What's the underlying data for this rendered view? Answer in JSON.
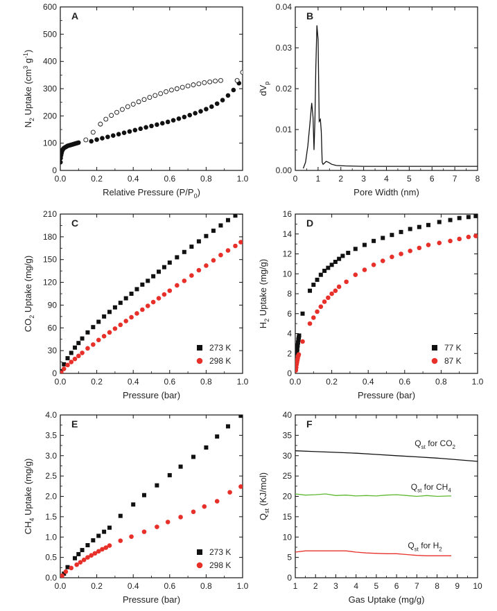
{
  "figure": {
    "background": "#ffffff",
    "ink": "#111111",
    "red": "#e8302a",
    "green": "#5cb82e"
  },
  "chart_data": [
    {
      "id": "A",
      "type": "scatter",
      "panel_label": "A",
      "xlabel": "Relative Pressure (P/P",
      "xlabel_sub": "0",
      "xlabel_tail": ")",
      "ylabel": "N",
      "ylabel_sub": "2",
      "ylabel_mid": " Uptake (cm",
      "ylabel_sup1": "3",
      "ylabel_mid2": " g",
      "ylabel_sup2": "-1",
      "ylabel_tail": ")",
      "xlim": [
        0,
        1
      ],
      "ylim": [
        0,
        600
      ],
      "grid": false,
      "xticks": [
        0.0,
        0.2,
        0.4,
        0.6,
        0.8,
        1.0
      ],
      "xtick_labels": [
        "0.0",
        "0.2",
        "0.4",
        "0.6",
        "0.8",
        "1.0"
      ],
      "yticks": [
        0,
        100,
        200,
        300,
        400,
        500,
        600
      ],
      "ytick_labels": [
        "0",
        "100",
        "200",
        "300",
        "400",
        "500",
        "600"
      ],
      "series": [
        {
          "role": "adsorption",
          "marker": "filled-circle",
          "color": "#111111",
          "x": [
            0.001,
            0.002,
            0.004,
            0.006,
            0.008,
            0.01,
            0.013,
            0.016,
            0.02,
            0.025,
            0.03,
            0.035,
            0.04,
            0.045,
            0.05,
            0.055,
            0.06,
            0.065,
            0.07,
            0.075,
            0.08,
            0.085,
            0.09,
            0.095,
            0.1,
            0.17,
            0.2,
            0.23,
            0.26,
            0.29,
            0.32,
            0.35,
            0.38,
            0.41,
            0.44,
            0.47,
            0.5,
            0.53,
            0.56,
            0.59,
            0.62,
            0.65,
            0.68,
            0.71,
            0.74,
            0.77,
            0.8,
            0.83,
            0.86,
            0.89,
            0.92,
            0.95,
            0.98
          ],
          "y": [
            30,
            45,
            55,
            62,
            68,
            72,
            76,
            79,
            82,
            84,
            86,
            88,
            90,
            91,
            92,
            93,
            94,
            95,
            96,
            97,
            98,
            99,
            100,
            101,
            102,
            107,
            113,
            118,
            123,
            128,
            133,
            138,
            143,
            148,
            153,
            158,
            163,
            168,
            173,
            178,
            184,
            190,
            196,
            203,
            210,
            217,
            225,
            234,
            245,
            258,
            275,
            295,
            320
          ]
        },
        {
          "role": "desorption",
          "marker": "open-circle",
          "color": "#111111",
          "x": [
            1.0,
            0.97,
            0.88,
            0.85,
            0.82,
            0.79,
            0.76,
            0.73,
            0.7,
            0.67,
            0.64,
            0.61,
            0.58,
            0.55,
            0.52,
            0.49,
            0.46,
            0.43,
            0.4,
            0.37,
            0.34,
            0.31,
            0.28,
            0.25,
            0.22,
            0.18,
            0.14
          ],
          "y": [
            360,
            330,
            330,
            328,
            325,
            322,
            318,
            314,
            310,
            305,
            300,
            295,
            289,
            282,
            275,
            268,
            260,
            252,
            243,
            234,
            224,
            213,
            202,
            188,
            170,
            140,
            112
          ]
        }
      ]
    },
    {
      "id": "B",
      "type": "line",
      "panel_label": "B",
      "xlabel": "Pore Width (nm)",
      "ylabel": "dV",
      "ylabel_sub": "p",
      "xlim": [
        0,
        8
      ],
      "ylim": [
        0,
        0.04
      ],
      "grid": false,
      "xticks": [
        0,
        1,
        2,
        3,
        4,
        5,
        6,
        7,
        8
      ],
      "xtick_labels": [
        "0",
        "1",
        "2",
        "3",
        "4",
        "5",
        "6",
        "7",
        "8"
      ],
      "yticks": [
        0,
        0.01,
        0.02,
        0.03,
        0.04
      ],
      "ytick_labels": [
        "0.00",
        "0.01",
        "0.02",
        "0.03",
        "0.04"
      ],
      "series": [
        {
          "color": "#111111",
          "x": [
            0.35,
            0.45,
            0.55,
            0.65,
            0.72,
            0.78,
            0.82,
            0.86,
            0.9,
            0.95,
            1.0,
            1.05,
            1.1,
            1.14,
            1.18,
            1.22,
            1.28,
            1.35,
            1.45,
            1.6,
            1.8,
            2.2,
            3,
            4,
            5,
            6,
            7,
            8
          ],
          "y": [
            0.0005,
            0.002,
            0.006,
            0.012,
            0.0165,
            0.013,
            0.005,
            0.012,
            0.025,
            0.0355,
            0.032,
            0.012,
            0.0125,
            0.0095,
            0.002,
            0.0015,
            0.0018,
            0.0022,
            0.002,
            0.0015,
            0.0012,
            0.0011,
            0.001,
            0.001,
            0.001,
            0.001,
            0.001,
            0.001
          ]
        }
      ]
    },
    {
      "id": "C",
      "type": "scatter",
      "panel_label": "C",
      "xlabel": "Pressure (bar)",
      "ylabel": "CO",
      "ylabel_sub": "2",
      "ylabel_tail": " Uptake (mg/g)",
      "xlim": [
        0,
        1
      ],
      "ylim": [
        0,
        210
      ],
      "grid": false,
      "xticks": [
        0,
        0.2,
        0.4,
        0.6,
        0.8,
        1.0
      ],
      "xtick_labels": [
        "0.0",
        "0.2",
        "0.4",
        "0.6",
        "0.8",
        "1.0"
      ],
      "yticks": [
        0,
        30,
        60,
        90,
        120,
        150,
        180,
        210
      ],
      "ytick_labels": [
        "0",
        "30",
        "60",
        "90",
        "120",
        "150",
        "180",
        "210"
      ],
      "legend_position": "bottom-right",
      "series": [
        {
          "name": "273 K",
          "marker": "square",
          "color": "#111111",
          "x": [
            0.005,
            0.02,
            0.04,
            0.06,
            0.08,
            0.1,
            0.12,
            0.15,
            0.18,
            0.21,
            0.24,
            0.27,
            0.3,
            0.33,
            0.36,
            0.39,
            0.42,
            0.45,
            0.48,
            0.51,
            0.54,
            0.57,
            0.6,
            0.64,
            0.68,
            0.72,
            0.76,
            0.8,
            0.84,
            0.88,
            0.92,
            0.96,
            0.99
          ],
          "y": [
            3,
            12,
            20,
            27,
            34,
            40,
            46,
            54,
            61,
            68,
            75,
            81,
            87,
            93,
            99,
            105,
            111,
            117,
            122,
            128,
            134,
            140,
            146,
            153,
            160,
            167,
            174,
            181,
            188,
            195,
            202,
            208,
            212
          ]
        },
        {
          "name": "298 K",
          "marker": "circle",
          "color": "#e8302a",
          "x": [
            0.005,
            0.02,
            0.04,
            0.06,
            0.08,
            0.1,
            0.12,
            0.15,
            0.18,
            0.21,
            0.24,
            0.27,
            0.3,
            0.33,
            0.36,
            0.39,
            0.42,
            0.45,
            0.48,
            0.51,
            0.54,
            0.57,
            0.6,
            0.64,
            0.68,
            0.72,
            0.76,
            0.8,
            0.84,
            0.88,
            0.92,
            0.96,
            0.99
          ],
          "y": [
            1,
            6,
            11,
            15,
            19,
            23,
            27,
            33,
            38,
            44,
            49,
            54,
            59,
            64,
            69,
            74,
            79,
            84,
            89,
            94,
            99,
            104,
            109,
            116,
            122,
            129,
            136,
            142,
            149,
            156,
            162,
            168,
            173
          ]
        }
      ]
    },
    {
      "id": "D",
      "type": "scatter",
      "panel_label": "D",
      "xlabel": "Pressure (bar)",
      "ylabel": "H",
      "ylabel_sub": "2",
      "ylabel_tail": " Uptake (mg/g)",
      "xlim": [
        0,
        1
      ],
      "ylim": [
        0,
        16
      ],
      "grid": false,
      "xticks": [
        0,
        0.2,
        0.4,
        0.6,
        0.8,
        1.0
      ],
      "xtick_labels": [
        "0.0",
        "0.2",
        "0.4",
        "0.6",
        "0.8",
        "1.0"
      ],
      "yticks": [
        0,
        2,
        4,
        6,
        8,
        10,
        12,
        14,
        16
      ],
      "ytick_labels": [
        "0",
        "2",
        "4",
        "6",
        "8",
        "10",
        "12",
        "14",
        "16"
      ],
      "legend_position": "bottom-right",
      "series": [
        {
          "name": "77 K",
          "marker": "square",
          "color": "#111111",
          "x": [
            0.003,
            0.005,
            0.007,
            0.009,
            0.011,
            0.013,
            0.015,
            0.017,
            0.019,
            0.021,
            0.04,
            0.08,
            0.1,
            0.12,
            0.14,
            0.16,
            0.18,
            0.2,
            0.22,
            0.24,
            0.26,
            0.29,
            0.33,
            0.38,
            0.43,
            0.48,
            0.53,
            0.58,
            0.63,
            0.68,
            0.73,
            0.79,
            0.85,
            0.9,
            0.95,
            0.99
          ],
          "y": [
            0.5,
            1.0,
            1.5,
            2.0,
            2.4,
            2.8,
            3.1,
            3.4,
            3.6,
            3.8,
            6.0,
            8.3,
            8.9,
            9.4,
            9.9,
            10.3,
            10.6,
            10.9,
            11.2,
            11.5,
            11.8,
            12.1,
            12.5,
            12.9,
            13.3,
            13.6,
            13.9,
            14.2,
            14.5,
            14.7,
            14.9,
            15.2,
            15.4,
            15.6,
            15.7,
            15.8
          ]
        },
        {
          "name": "87 K",
          "marker": "circle",
          "color": "#e8302a",
          "x": [
            0.003,
            0.005,
            0.007,
            0.009,
            0.011,
            0.013,
            0.015,
            0.017,
            0.019,
            0.04,
            0.08,
            0.1,
            0.12,
            0.14,
            0.16,
            0.18,
            0.2,
            0.22,
            0.24,
            0.28,
            0.33,
            0.38,
            0.43,
            0.48,
            0.53,
            0.58,
            0.63,
            0.68,
            0.73,
            0.79,
            0.85,
            0.9,
            0.95,
            0.99
          ],
          "y": [
            0.3,
            0.6,
            0.9,
            1.1,
            1.3,
            1.5,
            1.7,
            1.8,
            1.9,
            3.2,
            5.0,
            5.6,
            6.2,
            6.7,
            7.2,
            7.6,
            8.0,
            8.3,
            8.7,
            9.2,
            9.9,
            10.4,
            10.9,
            11.3,
            11.7,
            12.0,
            12.3,
            12.6,
            12.9,
            13.1,
            13.3,
            13.5,
            13.7,
            13.8
          ]
        }
      ]
    },
    {
      "id": "E",
      "type": "scatter",
      "panel_label": "E",
      "xlabel": "Pressure (bar)",
      "ylabel": "CH",
      "ylabel_sub": "4",
      "ylabel_tail": " Uptake (mg/g)",
      "xlim": [
        0,
        1
      ],
      "ylim": [
        0,
        4.0
      ],
      "grid": false,
      "xticks": [
        0,
        0.2,
        0.4,
        0.6,
        0.8,
        1.0
      ],
      "xtick_labels": [
        "0.0",
        "0.2",
        "0.4",
        "0.6",
        "0.8",
        "1.0"
      ],
      "yticks": [
        0,
        0.5,
        1.0,
        1.5,
        2.0,
        2.5,
        3.0,
        3.5,
        4.0
      ],
      "ytick_labels": [
        "0.0",
        "0.5",
        "1.0",
        "1.5",
        "2.0",
        "2.5",
        "3.0",
        "3.5",
        "4.0"
      ],
      "legend_position": "bottom-right",
      "series": [
        {
          "name": "273 K",
          "marker": "square",
          "color": "#111111",
          "x": [
            0.02,
            0.04,
            0.08,
            0.1,
            0.12,
            0.15,
            0.18,
            0.21,
            0.24,
            0.27,
            0.33,
            0.4,
            0.46,
            0.53,
            0.6,
            0.66,
            0.73,
            0.8,
            0.86,
            0.92,
            0.99
          ],
          "y": [
            0.1,
            0.26,
            0.48,
            0.58,
            0.68,
            0.8,
            0.92,
            1.03,
            1.13,
            1.23,
            1.52,
            1.8,
            2.03,
            2.27,
            2.52,
            2.73,
            2.97,
            3.2,
            3.47,
            3.72,
            3.98
          ]
        },
        {
          "name": "298 K",
          "marker": "circle",
          "color": "#e8302a",
          "x": [
            0.01,
            0.03,
            0.06,
            0.09,
            0.11,
            0.13,
            0.15,
            0.17,
            0.19,
            0.21,
            0.23,
            0.25,
            0.27,
            0.33,
            0.39,
            0.46,
            0.53,
            0.59,
            0.66,
            0.73,
            0.79,
            0.86,
            0.93,
            0.99
          ],
          "y": [
            0.05,
            0.15,
            0.24,
            0.32,
            0.38,
            0.44,
            0.5,
            0.55,
            0.6,
            0.65,
            0.7,
            0.74,
            0.79,
            0.91,
            1.01,
            1.13,
            1.25,
            1.37,
            1.49,
            1.62,
            1.75,
            1.88,
            2.1,
            2.24
          ]
        }
      ]
    },
    {
      "id": "F",
      "type": "line",
      "panel_label": "F",
      "xlabel": "Gas Uptake (mg/g)",
      "ylabel": "Q",
      "ylabel_sub": "st",
      "ylabel_tail": " (KJ/mol)",
      "xlim": [
        1,
        10
      ],
      "ylim": [
        0,
        40
      ],
      "grid": false,
      "xticks": [
        1,
        2,
        3,
        4,
        5,
        6,
        7,
        8,
        9,
        10
      ],
      "xtick_labels": [
        "1",
        "2",
        "3",
        "4",
        "5",
        "6",
        "7",
        "8",
        "9",
        "10"
      ],
      "yticks": [
        0,
        5,
        10,
        15,
        20,
        25,
        30,
        35,
        40
      ],
      "ytick_labels": [
        "0",
        "5",
        "10",
        "15",
        "20",
        "25",
        "30",
        "35",
        "40"
      ],
      "series": [
        {
          "name_prefix": "Q",
          "name_sub": "st",
          "name_text": " for CO",
          "name_text_sub": "2",
          "color": "#111111",
          "x": [
            1,
            2,
            3,
            4,
            5,
            6,
            7,
            8,
            9,
            10
          ],
          "y": [
            31.2,
            31.0,
            30.8,
            30.6,
            30.3,
            30.0,
            29.7,
            29.4,
            29.0,
            28.6
          ]
        },
        {
          "name_prefix": "Q",
          "name_sub": "st",
          "name_text": " for CH",
          "name_text_sub": "4",
          "color": "#5cb82e",
          "x": [
            1,
            1.5,
            2,
            2.5,
            3,
            3.5,
            4,
            4.5,
            5,
            5.5,
            6,
            6.5,
            7,
            7.5,
            8,
            8.7
          ],
          "y": [
            20.6,
            20.3,
            20.4,
            20.6,
            20.2,
            20.3,
            20.1,
            20.2,
            20.1,
            20.3,
            20.4,
            20.2,
            20.0,
            20.2,
            20.0,
            20.1
          ]
        },
        {
          "name_prefix": "Q",
          "name_sub": "st",
          "name_text": " for H",
          "name_text_sub": "2",
          "color": "#e8302a",
          "x": [
            1,
            1.5,
            2,
            2.5,
            3,
            3.5,
            4,
            4.5,
            5,
            5.5,
            6,
            6.5,
            7,
            7.5,
            8,
            8.7
          ],
          "y": [
            6.3,
            6.6,
            6.6,
            6.6,
            6.6,
            6.6,
            6.3,
            6.1,
            6.0,
            5.9,
            5.9,
            5.7,
            5.5,
            5.4,
            5.4,
            5.4
          ]
        }
      ]
    }
  ]
}
